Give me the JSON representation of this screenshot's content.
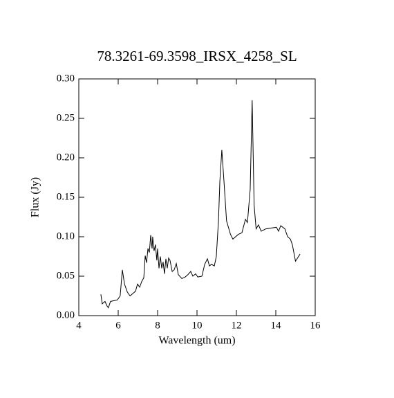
{
  "chart_data": {
    "type": "line",
    "title": "78.3261-69.3598_IRSX_4258_SL",
    "xlabel": "Wavelength (um)",
    "ylabel": "Flux (Jy)",
    "color": "#000000",
    "xlim": [
      4,
      16
    ],
    "ylim": [
      0,
      0.3
    ],
    "xticks": [
      4,
      6,
      8,
      10,
      12,
      14,
      16
    ],
    "yticks": [
      {
        "value": 0,
        "label": "0.00"
      },
      {
        "value": 0.05,
        "label": "0.05"
      },
      {
        "value": 0.1,
        "label": "0.10"
      },
      {
        "value": 0.15,
        "label": "0.15"
      },
      {
        "value": 0.2,
        "label": "0.20"
      },
      {
        "value": 0.25,
        "label": "0.25"
      },
      {
        "value": 0.3,
        "label": "0.30"
      }
    ],
    "x": [
      5.12,
      5.19,
      5.33,
      5.44,
      5.5,
      5.61,
      5.79,
      5.96,
      6.1,
      6.21,
      6.32,
      6.46,
      6.6,
      6.74,
      6.88,
      6.98,
      7.09,
      7.19,
      7.3,
      7.37,
      7.44,
      7.51,
      7.58,
      7.65,
      7.72,
      7.75,
      7.82,
      7.89,
      7.96,
      8.0,
      8.07,
      8.14,
      8.21,
      8.28,
      8.35,
      8.42,
      8.49,
      8.56,
      8.63,
      8.74,
      8.84,
      8.95,
      9.05,
      9.23,
      9.4,
      9.54,
      9.68,
      9.79,
      9.93,
      10.04,
      10.25,
      10.39,
      10.53,
      10.63,
      10.74,
      10.88,
      10.98,
      11.09,
      11.16,
      11.26,
      11.37,
      11.5,
      11.7,
      11.82,
      12.1,
      12.28,
      12.46,
      12.56,
      12.7,
      12.8,
      12.9,
      13.0,
      13.12,
      13.26,
      13.5,
      14.03,
      14.14,
      14.25,
      14.46,
      14.6,
      14.74,
      14.84,
      15.0,
      15.23
    ],
    "values": [
      0.027,
      0.015,
      0.018,
      0.012,
      0.01,
      0.018,
      0.019,
      0.02,
      0.025,
      0.058,
      0.04,
      0.03,
      0.025,
      0.028,
      0.031,
      0.04,
      0.036,
      0.043,
      0.048,
      0.076,
      0.067,
      0.085,
      0.08,
      0.102,
      0.085,
      0.1,
      0.082,
      0.09,
      0.07,
      0.085,
      0.06,
      0.075,
      0.06,
      0.068,
      0.053,
      0.072,
      0.06,
      0.073,
      0.07,
      0.056,
      0.058,
      0.066,
      0.052,
      0.047,
      0.049,
      0.052,
      0.056,
      0.05,
      0.053,
      0.049,
      0.05,
      0.065,
      0.072,
      0.063,
      0.065,
      0.063,
      0.075,
      0.12,
      0.17,
      0.21,
      0.17,
      0.12,
      0.103,
      0.097,
      0.103,
      0.105,
      0.122,
      0.118,
      0.16,
      0.273,
      0.14,
      0.11,
      0.115,
      0.107,
      0.11,
      0.112,
      0.107,
      0.114,
      0.11,
      0.1,
      0.097,
      0.09,
      0.069,
      0.078
    ]
  }
}
